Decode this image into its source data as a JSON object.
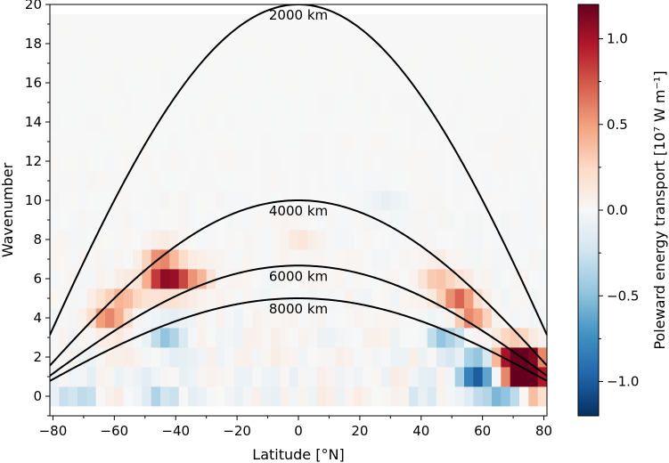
{
  "chart_data": {
    "type": "heatmap",
    "xlabel": "Latitude [°N]",
    "ylabel": "Wavenumber",
    "colorbar_label": "Poleward energy transport [10⁷ W m⁻¹]",
    "xlim": [
      -81,
      81
    ],
    "ylim": [
      -1,
      20
    ],
    "xticks": [
      -80,
      -60,
      -40,
      -20,
      0,
      20,
      40,
      60,
      80
    ],
    "xtick_labels": [
      "−80",
      "−60",
      "−40",
      "−20",
      "0",
      "20",
      "40",
      "60",
      "80"
    ],
    "yticks": [
      0,
      2,
      4,
      6,
      8,
      10,
      12,
      14,
      16,
      18,
      20
    ],
    "ytick_labels": [
      "0",
      "2",
      "4",
      "6",
      "8",
      "10",
      "12",
      "14",
      "16",
      "18",
      "20"
    ],
    "colorbar_range": [
      -1.2,
      1.2
    ],
    "colorbar_ticks": [
      -1.0,
      -0.5,
      0.0,
      0.5,
      1.0
    ],
    "colorbar_tick_labels": [
      "−1.0",
      "−0.5",
      "0.0",
      "0.5",
      "1.0"
    ],
    "colormap": "RdBu_r",
    "colormap_stops": [
      "#053061",
      "#2166ac",
      "#4393c3",
      "#92c5de",
      "#d1e5f0",
      "#f7f7f7",
      "#fddbc7",
      "#f4a582",
      "#d6604d",
      "#b2182b",
      "#67001f"
    ],
    "cell_grid": {
      "lat_step": 3,
      "wavenumber_rows": [
        0,
        1,
        2,
        3,
        4,
        5,
        6,
        7,
        8,
        9,
        10,
        11,
        12,
        13,
        14,
        15,
        16,
        17,
        18,
        19
      ]
    },
    "features": [
      {
        "lat": -62,
        "wavenumber": 4,
        "value": 0.55
      },
      {
        "lat": -57,
        "wavenumber": 5,
        "value": 0.4
      },
      {
        "lat": -45,
        "wavenumber": 6,
        "value": 0.65
      },
      {
        "lat": -40,
        "wavenumber": 6,
        "value": 0.6
      },
      {
        "lat": -45,
        "wavenumber": 7,
        "value": 0.4
      },
      {
        "lat": -33,
        "wavenumber": 6,
        "value": 0.35
      },
      {
        "lat": -43,
        "wavenumber": 3,
        "value": -0.5
      },
      {
        "lat": -72,
        "wavenumber": 0,
        "value": -0.35
      },
      {
        "lat": -45,
        "wavenumber": 0,
        "value": -0.3
      },
      {
        "lat": 52,
        "wavenumber": 5,
        "value": 0.6
      },
      {
        "lat": 57,
        "wavenumber": 4,
        "value": 0.55
      },
      {
        "lat": 45,
        "wavenumber": 6,
        "value": 0.35
      },
      {
        "lat": 68,
        "wavenumber": 2,
        "value": 0.75
      },
      {
        "lat": 74,
        "wavenumber": 2,
        "value": 0.95
      },
      {
        "lat": 76,
        "wavenumber": 1,
        "value": 1.15
      },
      {
        "lat": 72,
        "wavenumber": 1,
        "value": 0.9
      },
      {
        "lat": 48,
        "wavenumber": 3,
        "value": -0.5
      },
      {
        "lat": 58,
        "wavenumber": 1,
        "value": -0.85
      },
      {
        "lat": 60,
        "wavenumber": 2,
        "value": -0.35
      },
      {
        "lat": 68,
        "wavenumber": 0,
        "value": -0.7
      },
      {
        "lat": 40,
        "wavenumber": 0,
        "value": -0.2
      },
      {
        "lat": 28,
        "wavenumber": 10,
        "value": -0.1
      },
      {
        "lat": 0,
        "wavenumber": 8,
        "value": 0.15
      }
    ],
    "curves": [
      {
        "label": "2000 km",
        "peak_wavenumber": 20.0
      },
      {
        "label": "4000 km",
        "peak_wavenumber": 10.0
      },
      {
        "label": "6000 km",
        "peak_wavenumber": 6.67
      },
      {
        "label": "8000 km",
        "peak_wavenumber": 5.0
      }
    ],
    "grid": false
  }
}
